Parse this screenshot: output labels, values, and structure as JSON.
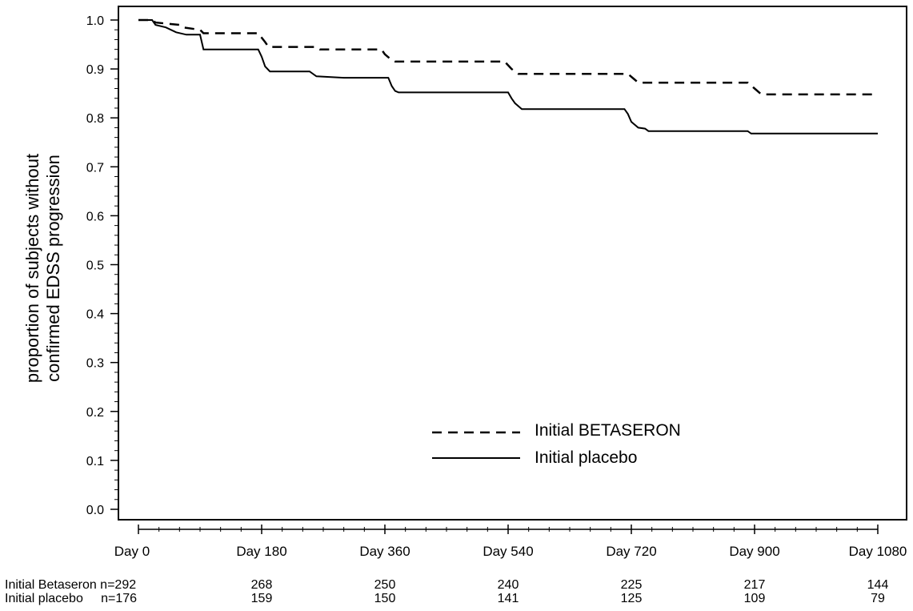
{
  "chart_data": {
    "type": "line",
    "ylabel_line1": "proportion of subjects without",
    "ylabel_line2": "confirmed EDSS progression",
    "ylim": [
      0.0,
      1.0
    ],
    "xlim": [
      0,
      1080
    ],
    "y_ticks": [
      "0.0",
      "0.1",
      "0.2",
      "0.3",
      "0.4",
      "0.5",
      "0.6",
      "0.7",
      "0.8",
      "0.9",
      "1.0"
    ],
    "x_tick_values": [
      0,
      180,
      360,
      540,
      720,
      900,
      1080
    ],
    "x_tick_labels": [
      "Day  0",
      "Day 180",
      "Day 360",
      "Day 540",
      "Day 720",
      "Day 900",
      "Day 1080"
    ],
    "grid": false,
    "legend_position": "bottom-center",
    "series": [
      {
        "name": "Initial BETASERON",
        "style": "dashed",
        "color": "#000000",
        "points": [
          [
            0,
            1.0
          ],
          [
            20,
            1.0
          ],
          [
            25,
            0.995
          ],
          [
            60,
            0.99
          ],
          [
            65,
            0.985
          ],
          [
            90,
            0.98
          ],
          [
            95,
            0.973
          ],
          [
            175,
            0.973
          ],
          [
            185,
            0.955
          ],
          [
            190,
            0.945
          ],
          [
            260,
            0.945
          ],
          [
            265,
            0.94
          ],
          [
            355,
            0.94
          ],
          [
            360,
            0.93
          ],
          [
            370,
            0.918
          ],
          [
            375,
            0.915
          ],
          [
            535,
            0.915
          ],
          [
            545,
            0.9
          ],
          [
            555,
            0.89
          ],
          [
            715,
            0.89
          ],
          [
            725,
            0.878
          ],
          [
            730,
            0.872
          ],
          [
            890,
            0.872
          ],
          [
            900,
            0.86
          ],
          [
            910,
            0.848
          ],
          [
            1080,
            0.848
          ]
        ]
      },
      {
        "name": "Initial placebo",
        "style": "solid",
        "color": "#000000",
        "points": [
          [
            0,
            1.0
          ],
          [
            20,
            1.0
          ],
          [
            25,
            0.99
          ],
          [
            40,
            0.985
          ],
          [
            55,
            0.975
          ],
          [
            70,
            0.97
          ],
          [
            90,
            0.97
          ],
          [
            95,
            0.94
          ],
          [
            175,
            0.94
          ],
          [
            180,
            0.925
          ],
          [
            185,
            0.905
          ],
          [
            192,
            0.895
          ],
          [
            250,
            0.895
          ],
          [
            260,
            0.885
          ],
          [
            300,
            0.882
          ],
          [
            365,
            0.882
          ],
          [
            370,
            0.865
          ],
          [
            375,
            0.855
          ],
          [
            380,
            0.852
          ],
          [
            540,
            0.852
          ],
          [
            545,
            0.84
          ],
          [
            550,
            0.83
          ],
          [
            560,
            0.818
          ],
          [
            710,
            0.818
          ],
          [
            715,
            0.808
          ],
          [
            720,
            0.792
          ],
          [
            730,
            0.78
          ],
          [
            740,
            0.778
          ],
          [
            745,
            0.773
          ],
          [
            890,
            0.773
          ],
          [
            895,
            0.768
          ],
          [
            1080,
            0.768
          ]
        ]
      }
    ],
    "risk_table": {
      "rows": [
        {
          "label": "Initial Betaseron n=292",
          "values": [
            "268",
            "250",
            "240",
            "225",
            "217",
            "144"
          ]
        },
        {
          "label": "Initial placebo     n=176",
          "values": [
            "159",
            "150",
            "141",
            "125",
            "109",
            "79"
          ]
        }
      ]
    }
  }
}
